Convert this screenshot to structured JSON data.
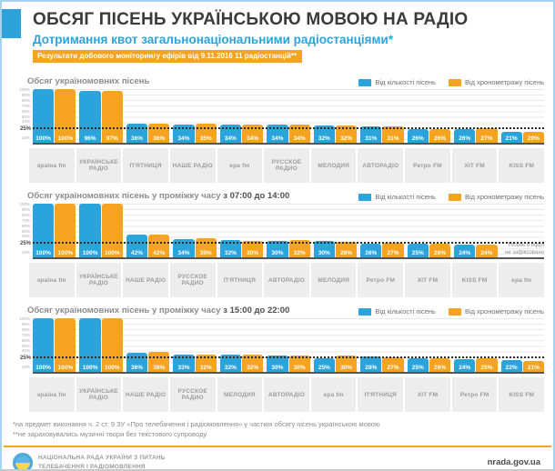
{
  "page": {
    "title": "ОБСЯГ ПІСЕНЬ УКРАЇНСЬКОЮ МОВОЮ НА РАДІО",
    "subtitle": "Дотримання квот загальнонаціональними радіостанціями*",
    "banner": "Результати добового моніторингу ефірів від 9.11.2016 11 радіостанцій**"
  },
  "legend": {
    "count_label": "Від кількості пісень",
    "duration_label": "Від хронометражу пісень"
  },
  "colors": {
    "blue": "#2ba4dc",
    "orange": "#f5a321",
    "frame": "#a6d3ec"
  },
  "y_axis": {
    "ticks": [
      {
        "label": "100%",
        "value": 100
      },
      {
        "label": "90%",
        "value": 90
      },
      {
        "label": "80%",
        "value": 80
      },
      {
        "label": "70%",
        "value": 70
      },
      {
        "label": "60%",
        "value": 60
      },
      {
        "label": "50%",
        "value": 50
      },
      {
        "label": "40%",
        "value": 40
      },
      {
        "label": "10%",
        "value": 10
      }
    ],
    "quota": {
      "label": "25%",
      "value": 25
    }
  },
  "no_data_label": "Пісень в ефірі не зафіксовано",
  "chart_data": [
    {
      "type": "bar",
      "title": "Обсяг україномовних пісень",
      "title_bold": "",
      "ylim": [
        0,
        100
      ],
      "grid": true,
      "legend_position": "top-right",
      "categories": [
        "країна fm",
        "УКРАЇНСЬКЕ РАДІО",
        "П'ЯТНИЦЯ",
        "НАШЕ РАДІО",
        "ера fm",
        "РУССКОЕ РАДИО",
        "МЕЛОДИЯ",
        "АВТОРАДІО",
        "Ретро FM",
        "ХІТ FM",
        "KISS FM"
      ],
      "series": [
        {
          "name": "Від кількості пісень",
          "values": [
            100,
            96,
            36,
            34,
            34,
            34,
            32,
            31,
            26,
            26,
            21
          ]
        },
        {
          "name": "Від хронометражу пісень",
          "values": [
            100,
            97,
            36,
            35,
            34,
            34,
            32,
            31,
            26,
            27,
            20
          ]
        }
      ]
    },
    {
      "type": "bar",
      "title": "Обсяг україномовних пісень у проміжку часу ",
      "title_bold": "з 07:00 до 14:00",
      "ylim": [
        0,
        100
      ],
      "grid": true,
      "legend_position": "top-right",
      "categories": [
        "країна fm",
        "УКРАЇНСЬКЕ РАДІО",
        "НАШЕ РАДІО",
        "РУССКОЕ РАДИО",
        "П'ЯТНИЦЯ",
        "АВТОРАДІО",
        "МЕЛОДИЯ",
        "Ретро FM",
        "ХІТ FM",
        "KISS FM",
        "ера fm"
      ],
      "series": [
        {
          "name": "Від кількості пісень",
          "values": [
            100,
            100,
            42,
            34,
            32,
            30,
            30,
            26,
            25,
            24,
            null
          ]
        },
        {
          "name": "Від хронометражу пісень",
          "values": [
            100,
            100,
            42,
            35,
            30,
            32,
            29,
            27,
            26,
            24,
            null
          ]
        }
      ]
    },
    {
      "type": "bar",
      "title": "Обсяг україномовних пісень у проміжку часу ",
      "title_bold": "з 15:00 до 22:00",
      "ylim": [
        0,
        100
      ],
      "grid": true,
      "legend_position": "top-right",
      "categories": [
        "країна fm",
        "УКРАЇНСЬКЕ РАДІО",
        "НАШЕ РАДІО",
        "РУССКОЕ РАДИО",
        "МЕЛОДИЯ",
        "АВТОРАДІО",
        "ера fm",
        "П'ЯТНИЦЯ",
        "ХІТ FM",
        "Ретро FM",
        "KISS FM"
      ],
      "series": [
        {
          "name": "Від кількості пісень",
          "values": [
            100,
            100,
            36,
            33,
            32,
            30,
            25,
            28,
            25,
            24,
            22
          ]
        },
        {
          "name": "Від хронометражу пісень",
          "values": [
            100,
            100,
            38,
            32,
            32,
            30,
            30,
            27,
            26,
            25,
            21
          ]
        }
      ]
    }
  ],
  "footer": {
    "footnote1": "*на предмет виконання ч. 2 ст. 9 ЗУ «Про телебачення і радіомовлення» у частині обсягу пісень українською мовою",
    "footnote2": "**не зараховувались музичні твори без текстового супроводу",
    "org_line1": "НАЦІОНАЛЬНА РАДА УКРАЇНИ З ПИТАНЬ",
    "org_line2": "ТЕЛЕБАЧЕННЯ І РАДІОМОВЛЕННЯ",
    "website": "nrada.gov.ua"
  }
}
